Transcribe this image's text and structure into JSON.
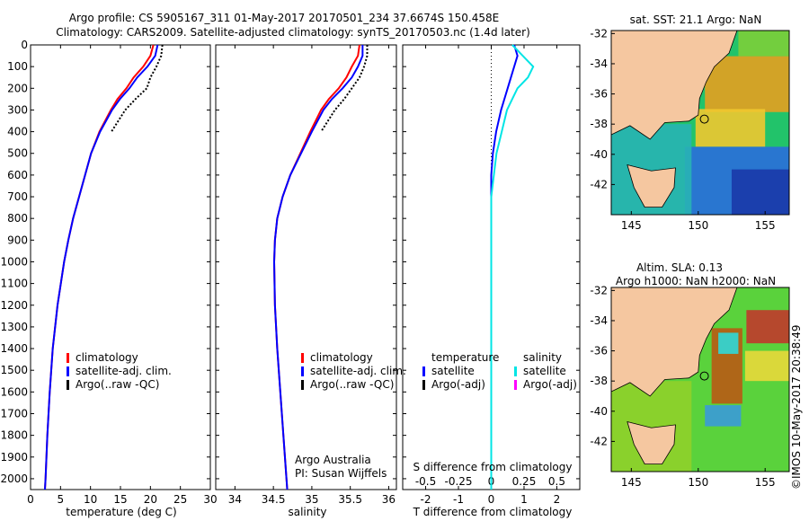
{
  "header": {
    "line1": "Argo profile: CS 5905167_311 01-May-2017 20170501_234 37.6674S 150.458E",
    "line2": "Climatology: CARS2009. Satellite-adjusted climatology: synTS_20170503.nc (1.4d later)"
  },
  "colors": {
    "climatology": "#ff0000",
    "satellite": "#0000ff",
    "argo": "#000000",
    "sat_salinity": "#00e5e5",
    "argo_adj": "#ff00ff",
    "land": "#f5c7a0"
  },
  "panels": {
    "temperature": {
      "xlabel": "temperature (deg C)"
    },
    "salinity": {
      "xlabel": "salinity",
      "note1": "Argo Australia",
      "note2": "PI: Susan Wijffels"
    },
    "difference": {
      "xlabel_top": "S difference from climatology",
      "xlabel_bottom": "T difference from climatology"
    }
  },
  "legend_main": [
    "climatology",
    "satellite-adj. clim.",
    "Argo(..raw -QC)"
  ],
  "legend_diff": {
    "temp_title": "temperature",
    "temp_items": [
      "satellite",
      "Argo(-adj)"
    ],
    "sal_title": "salinity",
    "sal_items": [
      "satellite",
      "Argo(-adj)"
    ]
  },
  "maps": {
    "sst_title": "sat. SST: 21.1  Argo: NaN",
    "sla_title1": "Altim. SLA: 0.13",
    "sla_title2": "Argo h1000: NaN h2000: NaN",
    "xticks": [
      "145",
      "150",
      "155"
    ],
    "yticks": [
      "-32",
      "-34",
      "-36",
      "-38",
      "-40",
      "-42"
    ]
  },
  "credit": "©IMOS 10-May-2017 20:38:49",
  "chart_data": [
    {
      "type": "line",
      "xlabel": "temperature (deg C)",
      "ylabel": "",
      "xlim": [
        0,
        30
      ],
      "ylim": [
        2050,
        0
      ],
      "xticks": [
        0,
        5,
        10,
        15,
        20,
        25,
        30
      ],
      "yticks": [
        0,
        100,
        200,
        300,
        400,
        500,
        600,
        700,
        800,
        900,
        1000,
        1100,
        1200,
        1300,
        1400,
        1500,
        1600,
        1700,
        1800,
        1900,
        2000
      ],
      "depths": [
        0,
        50,
        100,
        150,
        200,
        250,
        300,
        400,
        500,
        600,
        700,
        800,
        900,
        1000,
        1200,
        1400,
        1600,
        1800,
        2000,
        2050
      ],
      "series": [
        {
          "name": "climatology",
          "values": [
            20.5,
            20,
            18.8,
            17.2,
            16,
            14.5,
            13.4,
            11.5,
            10.1,
            9.1,
            8.1,
            7.1,
            6.3,
            5.6,
            4.5,
            3.7,
            3.2,
            2.8,
            2.5,
            2.4
          ]
        },
        {
          "name": "satellite-adj. clim.",
          "values": [
            21.2,
            20.8,
            19.5,
            17.8,
            16.5,
            14.9,
            13.6,
            11.6,
            10.1,
            9.1,
            8.1,
            7.1,
            6.3,
            5.6,
            4.5,
            3.7,
            3.2,
            2.8,
            2.5,
            2.4
          ]
        },
        {
          "name": "Argo(..raw -QC)",
          "values": [
            22,
            21.8,
            21,
            20,
            19.4,
            17.5,
            15.8,
            13.5
          ]
        }
      ]
    },
    {
      "type": "line",
      "xlabel": "salinity",
      "xlim": [
        33.75,
        36.1
      ],
      "ylim": [
        2050,
        0
      ],
      "xticks": [
        34,
        34.5,
        35,
        35.5,
        36
      ],
      "depths": [
        0,
        50,
        100,
        150,
        200,
        250,
        300,
        400,
        500,
        600,
        700,
        800,
        900,
        1000,
        1200,
        1400,
        1600,
        1800,
        2000,
        2050
      ],
      "series": [
        {
          "name": "climatology",
          "values": [
            35.62,
            35.6,
            35.52,
            35.45,
            35.35,
            35.22,
            35.12,
            34.98,
            34.85,
            34.72,
            34.62,
            34.55,
            34.52,
            34.51,
            34.52,
            34.55,
            34.59,
            34.63,
            34.67,
            34.68
          ]
        },
        {
          "name": "satellite-adj. clim.",
          "values": [
            35.66,
            35.66,
            35.6,
            35.52,
            35.4,
            35.26,
            35.15,
            35.0,
            34.86,
            34.72,
            34.62,
            34.55,
            34.52,
            34.51,
            34.52,
            34.55,
            34.59,
            34.63,
            34.67,
            34.68
          ]
        },
        {
          "name": "Argo(..raw -QC)",
          "values": [
            35.72,
            35.72,
            35.68,
            35.62,
            35.52,
            35.42,
            35.3,
            35.12
          ]
        }
      ]
    },
    {
      "type": "line",
      "xlabel_bottom": "T difference from climatology",
      "xlabel_top": "S difference from climatology",
      "xlim": [
        -2.7,
        2.7
      ],
      "ylim": [
        2050,
        0
      ],
      "xticks_bottom": [
        -2,
        -1,
        0,
        1,
        2
      ],
      "xticks_top": [
        "-0.5",
        "-0.25",
        "0",
        "0.25",
        "0.5"
      ],
      "depths": [
        0,
        50,
        100,
        150,
        200,
        250,
        300,
        400,
        500,
        600,
        700,
        800,
        900,
        1000,
        1200,
        1400,
        1600,
        1800,
        2000,
        2050
      ],
      "series": [
        {
          "name": "temperature satellite",
          "values": [
            0.7,
            0.8,
            0.7,
            0.6,
            0.5,
            0.4,
            0.3,
            0.15,
            0.05,
            0,
            0,
            0,
            0,
            0,
            0,
            0,
            0,
            0,
            0,
            0
          ]
        },
        {
          "name": "salinity satellite",
          "values": [
            0.16,
            0.24,
            0.32,
            0.28,
            0.2,
            0.16,
            0.12,
            0.08,
            0.04,
            0.02,
            0,
            0,
            0,
            0,
            0,
            0,
            0,
            0,
            0,
            0
          ]
        }
      ]
    }
  ]
}
